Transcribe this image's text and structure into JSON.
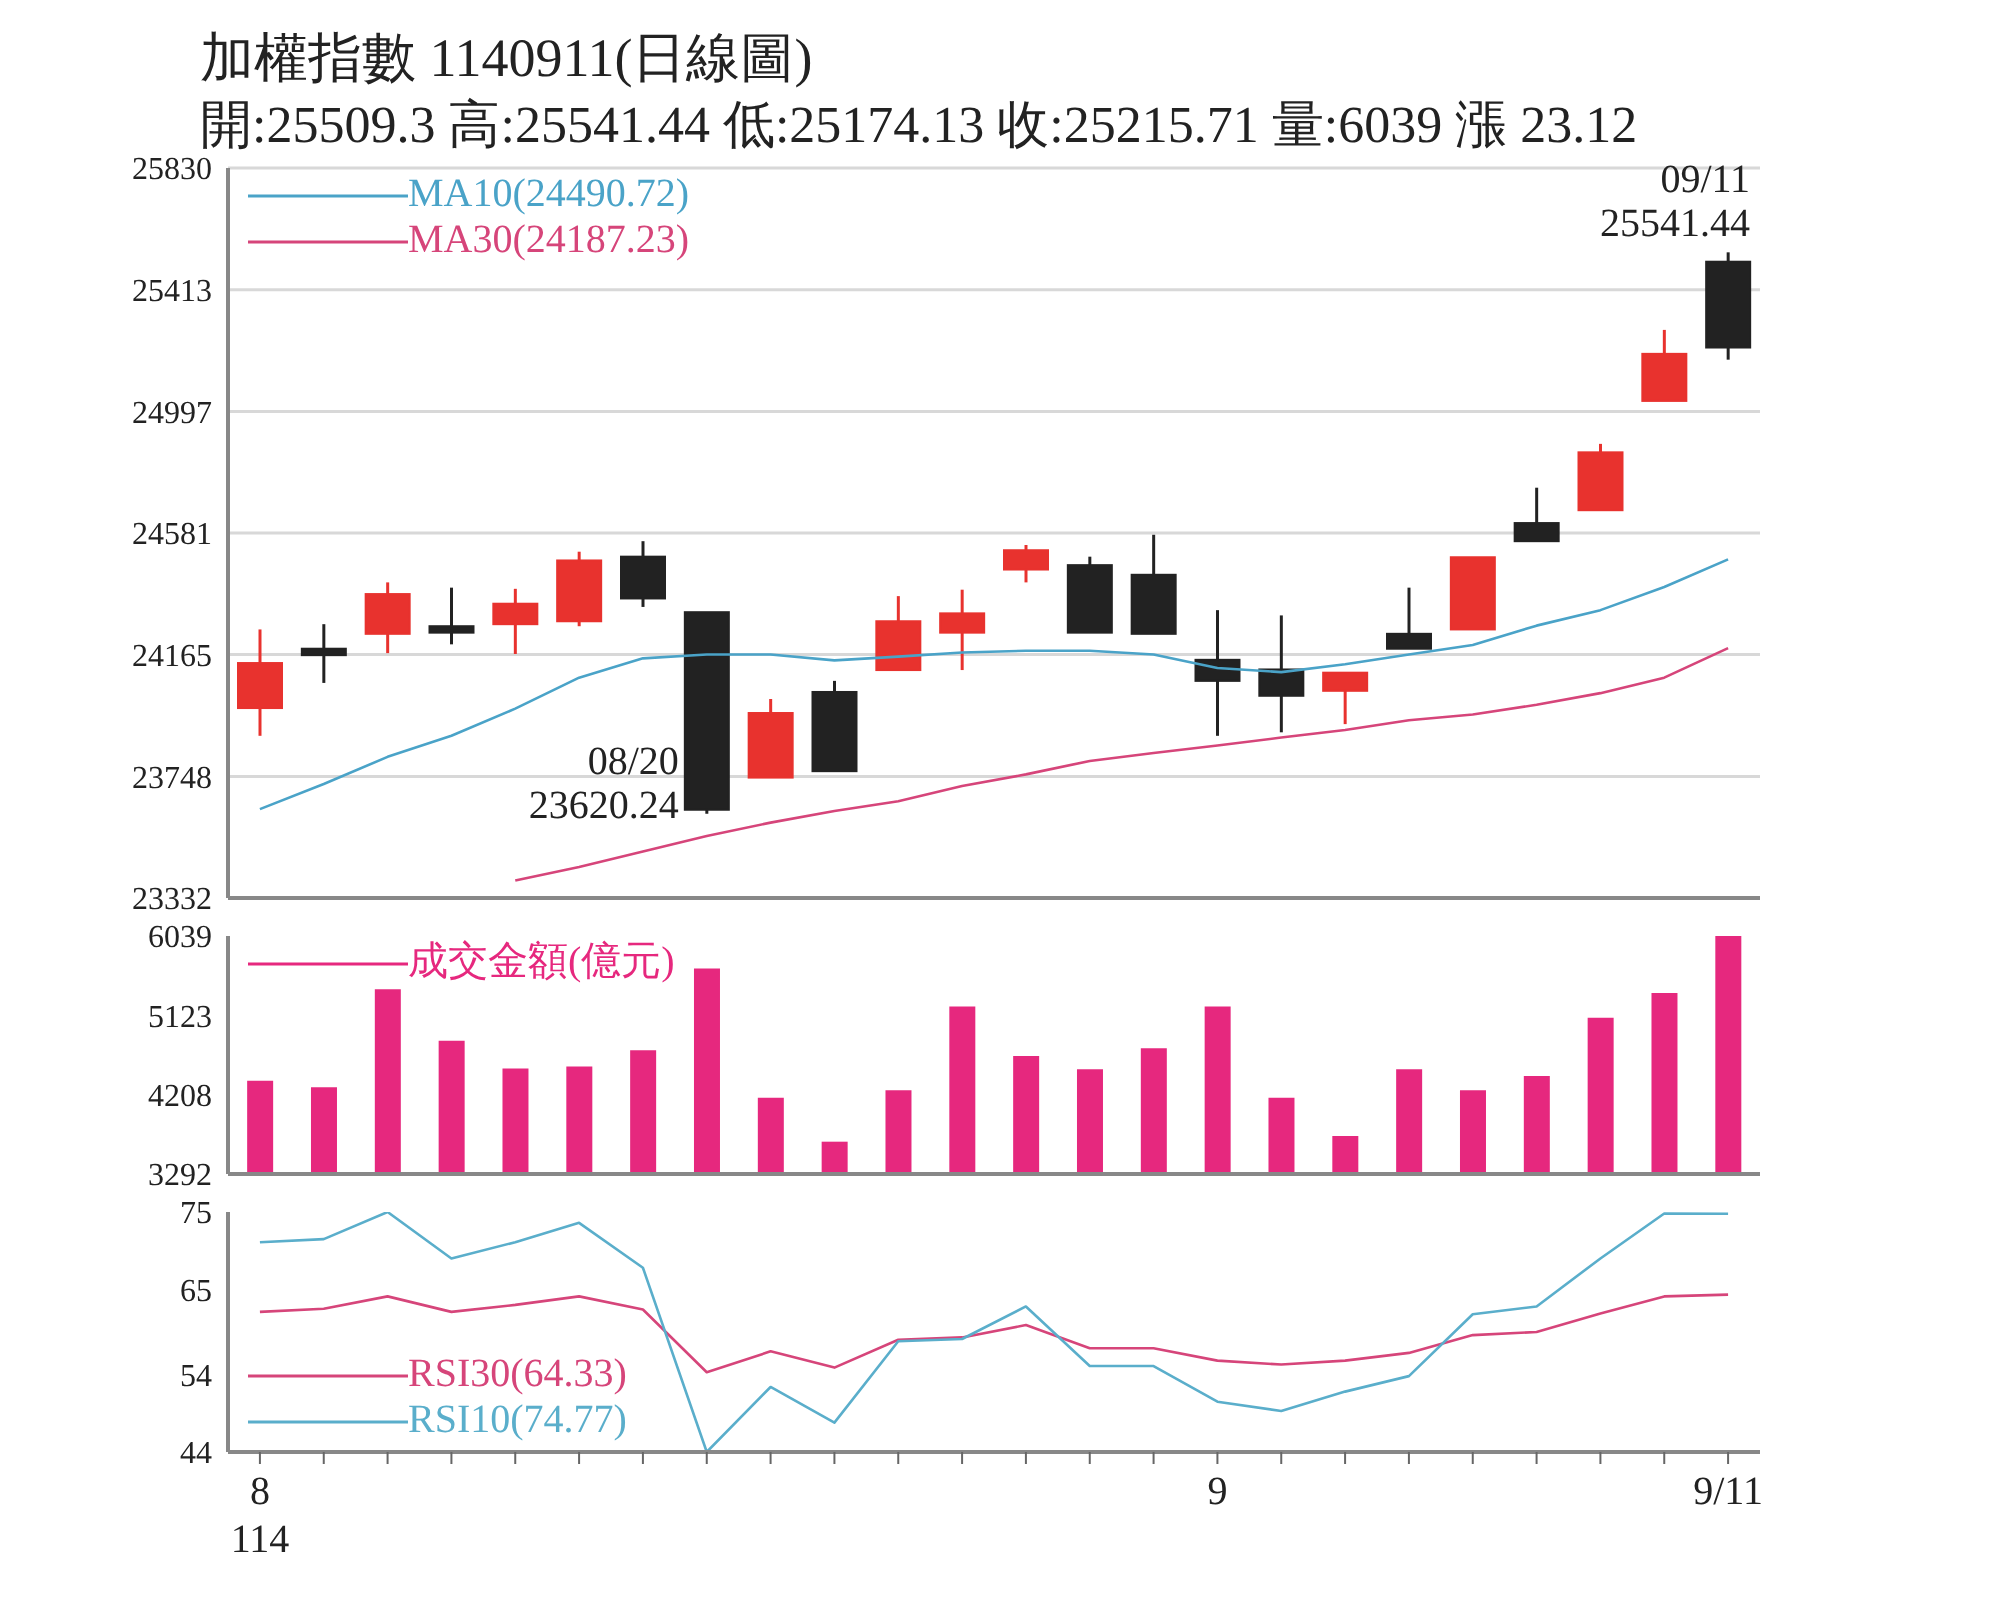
{
  "chart_data": [
    {
      "type": "candlestick",
      "title": "加權指數 1140911(日線圖)",
      "subtitle": "開:25509.3 高:25541.44 低:25174.13 收:25215.71 量:6039 漲 23.12",
      "categories": [
        "8\n114",
        null,
        null,
        null,
        null,
        null,
        null,
        null,
        null,
        null,
        null,
        null,
        null,
        null,
        null,
        "9",
        null,
        null,
        null,
        null,
        null,
        null,
        null,
        "9/11"
      ],
      "ohlc": [
        [
          23982,
          24251,
          23887,
          24136
        ],
        [
          24185,
          24269,
          24068,
          24163
        ],
        [
          24236,
          24412,
          24170,
          24372
        ],
        [
          24262,
          24394,
          24200,
          24240
        ],
        [
          24269,
          24390,
          24167,
          24339
        ],
        [
          24279,
          24517,
          24262,
          24487
        ],
        [
          24500,
          24553,
          24328,
          24357
        ],
        [
          24310,
          24310,
          23620.24,
          23634
        ],
        [
          23744,
          24013,
          23744,
          23965
        ],
        [
          24037,
          24075,
          23766,
          23766
        ],
        [
          24112,
          24365,
          24112,
          24279
        ],
        [
          24240,
          24387,
          24112,
          24306
        ],
        [
          24456,
          24540,
          24412,
          24522
        ],
        [
          24471,
          24500,
          24240,
          24240
        ],
        [
          24438,
          24575,
          24236,
          24236
        ],
        [
          24147,
          24317,
          23887,
          24075
        ],
        [
          24114,
          24299,
          23899,
          24024
        ],
        [
          24041,
          24103,
          23927,
          24103
        ],
        [
          24236,
          24394,
          24185,
          24185
        ],
        [
          24251,
          24498,
          24251,
          24498
        ],
        [
          24615,
          24736,
          24553,
          24553
        ],
        [
          24659,
          24886,
          24659,
          24857
        ],
        [
          25033,
          25276,
          25033,
          25194
        ],
        [
          25509.3,
          25541.44,
          25174.13,
          25215.71
        ]
      ],
      "colors": [
        "#e8322e",
        "#222222",
        "#e8322e",
        "#222222",
        "#e8322e",
        "#e8322e",
        "#222222",
        "#222222",
        "#e8322e",
        "#222222",
        "#e8322e",
        "#e8322e",
        "#e8322e",
        "#222222",
        "#222222",
        "#222222",
        "#222222",
        "#e8322e",
        "#222222",
        "#e8322e",
        "#222222",
        "#e8322e",
        "#e8322e",
        "#222222"
      ],
      "series": [
        {
          "type": "line",
          "name": "MA10(24490.72)",
          "color": "#4aa3c8",
          "values": [
            23636,
            23722,
            23815,
            23887,
            23980,
            24086,
            24152,
            24165,
            24165,
            24145,
            24158,
            24172,
            24178,
            24178,
            24165,
            24119,
            24105,
            24132,
            24165,
            24198,
            24264,
            24317,
            24396,
            24490.72
          ]
        },
        {
          "type": "line",
          "name": "MA30(24187.23)",
          "color": "#d6457a",
          "values": [
            null,
            null,
            null,
            null,
            23392,
            23438,
            23491,
            23544,
            23590,
            23630,
            23663,
            23715,
            23755,
            23801,
            23828,
            23854,
            23881,
            23907,
            23940,
            23960,
            23993,
            24033,
            24086,
            24187.23
          ]
        }
      ],
      "annotations": [
        "08/20\n23620.24",
        {
          "text": "09/11\n25541.44",
          "x": "9/11",
          "y": 25541.44
        }
      ],
      "ylim": [
        23332,
        25830
      ],
      "yticks": [
        25830,
        25413,
        24997,
        24581,
        24165,
        23748,
        23332
      ],
      "grid": "y",
      "legend": "top left",
      "tick_labels": "y"
    },
    {
      "type": "bar",
      "categories": [
        "8\n114",
        null,
        null,
        null,
        null,
        null,
        null,
        null,
        null,
        null,
        null,
        null,
        null,
        null,
        null,
        "9",
        null,
        null,
        null,
        null,
        null,
        null,
        null,
        "9/11"
      ],
      "series": [
        {
          "name": "成交金額(億元)",
          "color": "#e6287e",
          "values": [
            4369,
            4292,
            5424,
            4830,
            4511,
            4533,
            4720,
            5665,
            4171,
            3665,
            4259,
            5226,
            4654,
            4500,
            4742,
            5226,
            4171,
            3731,
            4500,
            4259,
            4423,
            5094,
            5380,
            6039
          ]
        }
      ],
      "ylim": [
        3292,
        6039
      ],
      "yticks": [
        6039,
        5123,
        4208,
        3292
      ],
      "legend": "top left",
      "tick_labels": "y"
    },
    {
      "type": "line",
      "categories": [
        "8\n114",
        null,
        null,
        null,
        null,
        null,
        null,
        null,
        null,
        null,
        null,
        null,
        null,
        null,
        null,
        "9",
        null,
        null,
        null,
        null,
        null,
        null,
        null,
        "9/11"
      ],
      "series": [
        {
          "name": "RSI30(64.33)",
          "color": "#d6457a",
          "values": [
            62.1,
            62.5,
            64.1,
            62.1,
            63.0,
            64.1,
            62.4,
            54.3,
            57.0,
            54.9,
            58.5,
            58.8,
            60.4,
            57.4,
            57.4,
            55.8,
            55.3,
            55.8,
            56.8,
            59.1,
            59.5,
            61.9,
            64.1,
            64.33
          ]
        },
        {
          "name": "RSI10(74.77)",
          "color": "#5aaecb",
          "values": [
            71.1,
            71.5,
            75,
            69.0,
            71.1,
            73.6,
            67.8,
            44,
            52.4,
            47.8,
            58.3,
            58.6,
            62.8,
            55.1,
            55.1,
            50.5,
            49.3,
            51.8,
            53.8,
            61.8,
            62.8,
            69.0,
            74.8,
            74.77
          ]
        }
      ],
      "ylim": [
        44,
        75
      ],
      "yticks": [
        75,
        65,
        54,
        44
      ],
      "legend": "bottom left"
    }
  ]
}
